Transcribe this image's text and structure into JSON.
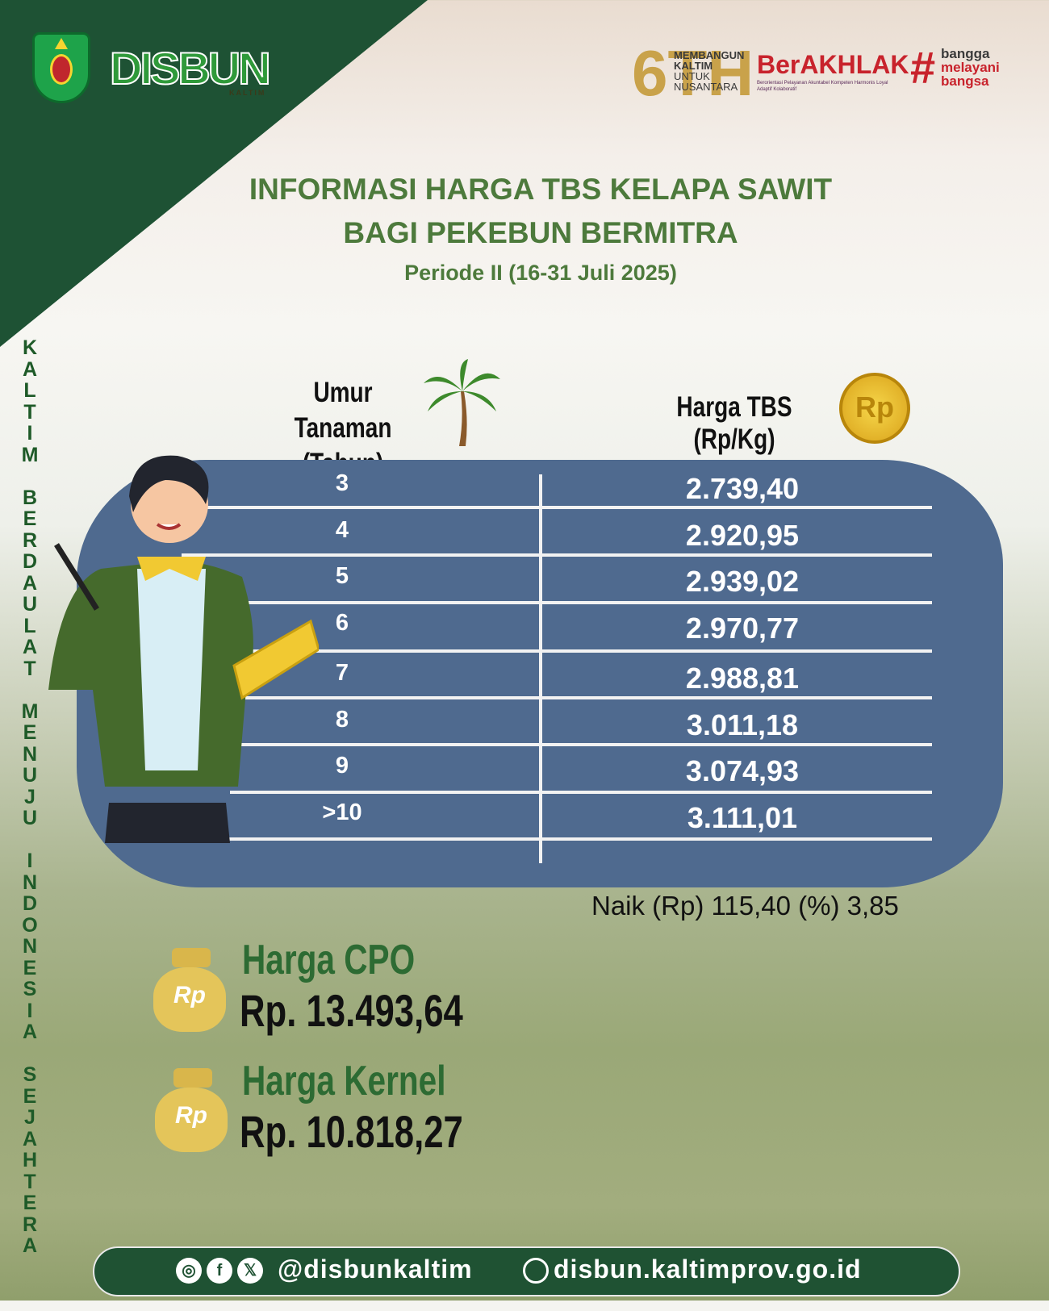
{
  "header": {
    "logo_disbun": "DISBUN",
    "logo_disbun_sub": "KALTIM",
    "logo_anniv": "6TH",
    "anniv_text": [
      "MEMBANGUN",
      "KALTIM",
      "UNTUK",
      "NUSANTARA"
    ],
    "berakhlak": "BerAKHLAK",
    "berakhlak_sub": "Berorientasi Pelayanan Akuntabel Kompeten Harmonis Loyal Adaptif Kolaboratif",
    "bangga": [
      "bangga",
      "melayani",
      "bangsa"
    ]
  },
  "title": {
    "line1": "INFORMASI HARGA TBS KELAPA SAWIT",
    "line2": "BAGI PEKEBUN BERMITRA",
    "period": "Periode II (16-31 Juli 2025)"
  },
  "side_text": "KALTIM BERDAULAT MENUJU INDONESIA SEJAHTERA",
  "table": {
    "col_age": [
      "Umur Tanaman",
      "(Tahun)"
    ],
    "col_price": "Harga TBS (Rp/Kg)",
    "coin_icon": "Rp",
    "rows": [
      {
        "age": "3",
        "price": "2.739,40"
      },
      {
        "age": "4",
        "price": "2.920,95"
      },
      {
        "age": "5",
        "price": "2.939,02"
      },
      {
        "age": "6",
        "price": "2.970,77"
      },
      {
        "age": "7",
        "price": "2.988,81"
      },
      {
        "age": "8",
        "price": "3.011,18"
      },
      {
        "age": "9",
        "price": "3.074,93"
      },
      {
        "age": ">10",
        "price": "3.111,01"
      }
    ]
  },
  "change": "Naik (Rp) 115,40 (%) 3,85",
  "cpo": {
    "label": "Harga CPO",
    "value": "Rp. 13.493,64",
    "bag": "Rp"
  },
  "kernel": {
    "label": "Harga Kernel",
    "value": "Rp. 10.818,27",
    "bag": "Rp"
  },
  "footer": {
    "handle": "@disbunkaltim",
    "website": "disbun.kaltimprov.go.id"
  },
  "colors": {
    "dark_green": "#1e5234",
    "panel": "#4f6a8f",
    "title_green": "#4d7a3c",
    "red": "#c8232c"
  }
}
